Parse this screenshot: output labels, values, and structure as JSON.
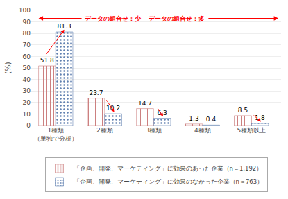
{
  "chart_data": {
    "type": "bar",
    "categories": [
      "1種類\n（単独で分析）",
      "2種類",
      "3種類",
      "4種類",
      "5種類以上"
    ],
    "series": [
      {
        "name": "「企画、開発、マーケティング」に効果のあった企業（n＝1,192）",
        "color": "#f2a0a0",
        "values": [
          51.8,
          23.7,
          14.7,
          1.3,
          8.5
        ]
      },
      {
        "name": "「企画、開発、マーケティング」に効果のなかった企業（n＝763）",
        "color": "#a8c4e8",
        "values": [
          81.3,
          10.2,
          6.3,
          0.4,
          1.8
        ]
      }
    ],
    "ylabel": "(%)",
    "ylim": [
      0,
      100
    ],
    "yticks": [
      0,
      10,
      20,
      30,
      40,
      50,
      60,
      70,
      80,
      90,
      100
    ],
    "grid": true,
    "data_labels": true,
    "legend": "bottom",
    "annotations": [
      {
        "text": "データの組合せ：少",
        "color": "#ff0000"
      },
      {
        "text": "データの組合せ：多",
        "color": "#ff0000"
      }
    ]
  }
}
